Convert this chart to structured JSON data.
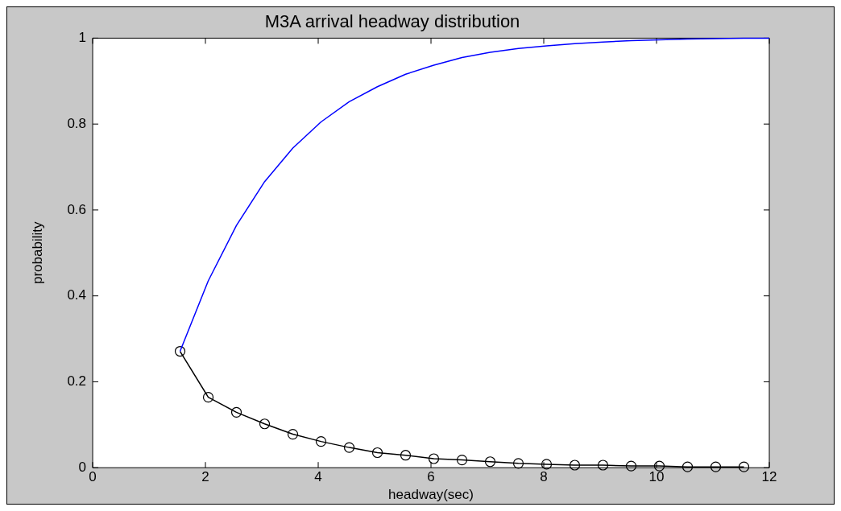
{
  "chart_data": {
    "type": "line",
    "title": "M3A arrival headway distribution",
    "xlabel": "headway(sec)",
    "ylabel": "probability",
    "xlim": [
      0,
      12
    ],
    "xticks": [
      0,
      2,
      4,
      6,
      8,
      10,
      12
    ],
    "ylim": [
      0,
      1
    ],
    "yticks": [
      0,
      0.2,
      0.4,
      0.6,
      0.8,
      1
    ],
    "grid": false,
    "legend": false,
    "series": [
      {
        "color": "#0000ff",
        "marker": "none",
        "x": [
          1.55,
          2.05,
          2.55,
          3.05,
          3.55,
          4.05,
          4.55,
          5.05,
          5.55,
          6.05,
          6.55,
          7.05,
          7.55,
          8.05,
          8.55,
          9.05,
          9.55,
          10.05,
          10.55,
          11.05,
          11.55,
          12
        ],
        "values": [
          0.271,
          0.435,
          0.564,
          0.666,
          0.744,
          0.805,
          0.852,
          0.887,
          0.916,
          0.937,
          0.955,
          0.967,
          0.976,
          0.982,
          0.987,
          0.991,
          0.994,
          0.996,
          0.998,
          0.999,
          1.0,
          1.0
        ]
      },
      {
        "color": "#000000",
        "marker": "circle",
        "x": [
          1.55,
          2.05,
          2.55,
          3.05,
          3.55,
          4.05,
          4.55,
          5.05,
          5.55,
          6.05,
          6.55,
          7.05,
          7.55,
          8.05,
          8.55,
          9.05,
          9.55,
          10.05,
          10.55,
          11.05,
          11.55
        ],
        "values": [
          0.271,
          0.164,
          0.129,
          0.102,
          0.078,
          0.061,
          0.047,
          0.035,
          0.029,
          0.021,
          0.018,
          0.014,
          0.01,
          0.008,
          0.006,
          0.006,
          0.004,
          0.004,
          0.002,
          0.002,
          0.002
        ]
      }
    ]
  }
}
